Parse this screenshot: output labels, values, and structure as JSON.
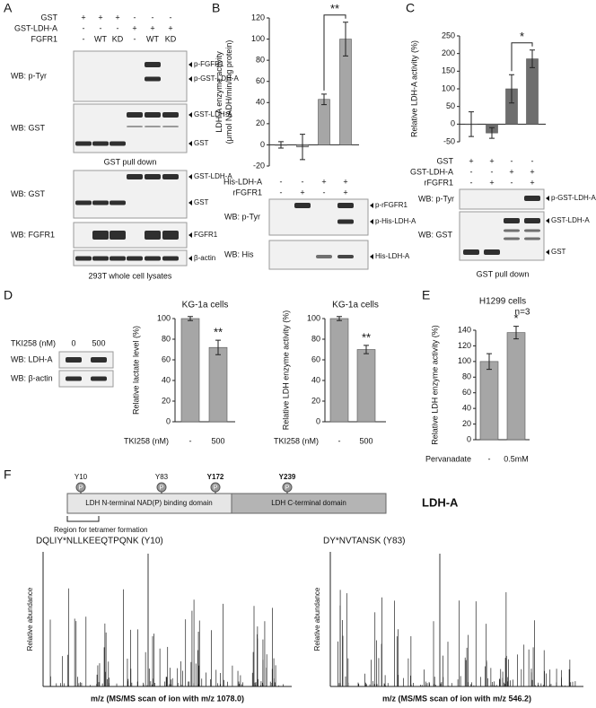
{
  "panel_labels": [
    "A",
    "B",
    "C",
    "D",
    "E",
    "F"
  ],
  "panel_a": {
    "rows": [
      {
        "label": "GST",
        "signs": [
          "+",
          "+",
          "+",
          "-",
          "-",
          "-"
        ]
      },
      {
        "label": "GST-LDH-A",
        "signs": [
          "-",
          "-",
          "-",
          "+",
          "+",
          "+"
        ]
      },
      {
        "label": "FGFR1",
        "signs": [
          "-",
          "WT",
          "KD",
          "-",
          "WT",
          "KD"
        ]
      }
    ],
    "blots": [
      {
        "label": "WB: p-Tyr",
        "markers": [
          "p-FGFR1",
          "p-GST-LDH-A"
        ]
      },
      {
        "label": "WB: GST",
        "markers": [
          "GST-LDH-A",
          "GST"
        ]
      },
      {
        "label": "WB: GST",
        "markers": [
          "GST-LDH-A",
          "GST"
        ]
      },
      {
        "label": "WB: FGFR1",
        "markers": [
          "FGFR1"
        ]
      },
      {
        "markers": [
          "β-actin"
        ]
      }
    ],
    "captions": [
      "GST pull down",
      "293T whole cell lysates"
    ]
  },
  "panel_b": {
    "blots": [
      {
        "label": "WB: p-Tyr",
        "markers": [
          "p-rFGFR1",
          "p-His-LDH-A"
        ]
      },
      {
        "label": "WB: His",
        "markers": [
          "His-LDH-A"
        ]
      }
    ]
  },
  "panel_c": {
    "blots": [
      {
        "label": "WB: p-Tyr",
        "markers": [
          "p-GST-LDH-A"
        ]
      },
      {
        "label": "WB: GST",
        "markers": [
          "GST-LDH-A",
          "GST"
        ]
      }
    ],
    "caption": "GST pull down"
  },
  "panel_d": {
    "treatment": {
      "label": "TKI258 (nM)",
      "doses": [
        "0",
        "500"
      ]
    },
    "blots": [
      {
        "label": "WB: LDH-A"
      },
      {
        "label": "WB: β-actin"
      }
    ]
  },
  "chart_data": [
    {
      "type": "bar",
      "y_label": [
        "LDH-A enzyme activity",
        "(μmol NADH/min/mg protein)"
      ],
      "rows": [
        {
          "label": "His-LDH-A",
          "signs": [
            "-",
            "-",
            "+",
            "+"
          ]
        },
        {
          "label": "rFGFR1",
          "signs": [
            "-",
            "+",
            "-",
            "+"
          ]
        }
      ],
      "values": [
        0,
        -2,
        43,
        100
      ],
      "errors": [
        3,
        12,
        5,
        16
      ],
      "color": "#a6a6a6",
      "ylim": [
        -20,
        120
      ],
      "yticks": [
        -20,
        0,
        20,
        40,
        60,
        80,
        100,
        120
      ],
      "annotation": "**",
      "bracket": true
    },
    {
      "type": "bar",
      "y_label": [
        "Relative LDH-A activity (%)"
      ],
      "rows": [
        {
          "label": "GST",
          "signs": [
            "+",
            "+",
            "-",
            "-"
          ]
        },
        {
          "label": "GST-LDH-A",
          "signs": [
            "-",
            "-",
            "+",
            "+"
          ]
        },
        {
          "label": "rFGFR1",
          "signs": [
            "-",
            "+",
            "-",
            "+"
          ]
        }
      ],
      "values": [
        0,
        -25,
        100,
        185
      ],
      "errors": [
        35,
        15,
        40,
        25
      ],
      "color": "#6e6e6e",
      "ylim": [
        -50,
        250
      ],
      "yticks": [
        -50,
        0,
        50,
        100,
        150,
        200,
        250
      ],
      "annotation": "*",
      "bracket": true
    },
    {
      "type": "bar",
      "title": "KG-1a cells",
      "y_label": [
        "Relative lactate level (%)"
      ],
      "x_label": "TKI258 (nM)",
      "categories": [
        "-",
        "500"
      ],
      "values": [
        100,
        72
      ],
      "errors": [
        2,
        7
      ],
      "color": "#a6a6a6",
      "ylim": [
        0,
        100
      ],
      "yticks": [
        0,
        20,
        40,
        60,
        80,
        100
      ],
      "annotation": "**",
      "bracket": false
    },
    {
      "type": "bar",
      "title": "KG-1a cells",
      "y_label": [
        "Relative LDH enzyme activity (%)"
      ],
      "x_label": "TKI258 (nM)",
      "categories": [
        "-",
        "500"
      ],
      "values": [
        100,
        70
      ],
      "errors": [
        2,
        4
      ],
      "color": "#a6a6a6",
      "ylim": [
        0,
        100
      ],
      "yticks": [
        0,
        20,
        40,
        60,
        80,
        100
      ],
      "annotation": "**",
      "bracket": false
    },
    {
      "type": "bar",
      "title": "H1299 cells",
      "subtitle": "n=3",
      "y_label": [
        "Relative LDH enzyme activity (%)"
      ],
      "x_label": "Pervanadate",
      "categories": [
        "-",
        "0.5mM"
      ],
      "values": [
        100,
        137
      ],
      "errors": [
        10,
        8
      ],
      "color": "#a6a6a6",
      "ylim": [
        0,
        140
      ],
      "yticks": [
        0,
        20,
        40,
        60,
        80,
        100,
        120,
        140
      ],
      "annotation": "*",
      "bracket": false
    }
  ],
  "panel_f": {
    "sites": [
      "Y10",
      "Y83",
      "Y172",
      "Y239"
    ],
    "phospho": "P",
    "domains": [
      "LDH N-terminal NAD(P) binding domain",
      "LDH C-terminal domain"
    ],
    "protein": "LDH-A",
    "region": "Region for tetramer formation",
    "spectra": [
      {
        "peptide": "DQLIY*NLLKEEQTPQNK (Y10)",
        "y_label": "Relative abundance",
        "x_label": "m/z (MS/MS scan of ion with m/z 1078.0)"
      },
      {
        "peptide": "DY*NVTANSK (Y83)",
        "y_label": "Relative abundance",
        "x_label": "m/z (MS/MS scan of ion with m/z 546.2)"
      }
    ]
  }
}
